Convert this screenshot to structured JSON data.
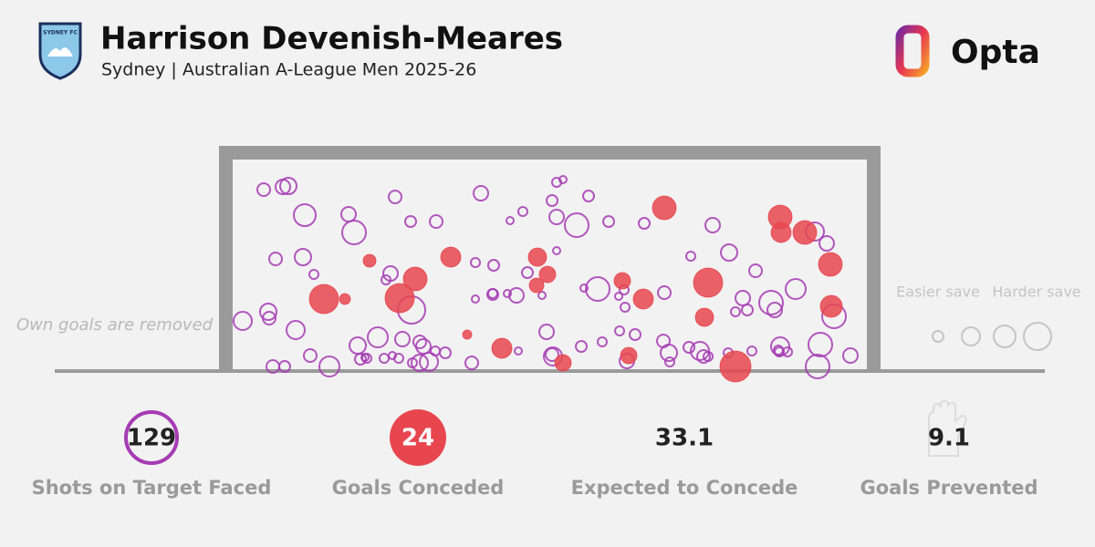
{
  "header": {
    "crest": "SYDNEY FC",
    "title": "Harrison Devenish-Meares",
    "subtitle": "Sydney | Australian A-League Men 2025-26",
    "brand": "Opta"
  },
  "chart_data": {
    "type": "scatter",
    "annotation": "Own goals are removed",
    "size_legend": {
      "easier": "Easier save",
      "harder": "Harder save"
    },
    "xlim": [
      255,
      950
    ],
    "ylim": [
      405,
      175
    ],
    "series": [
      {
        "color": "#a63bb4",
        "filled": false,
        "x": [
          289,
          310,
          316,
          334,
          433,
          527,
          605,
          610,
          617,
          645,
          382,
          388,
          450,
          478,
          573,
          559,
          610,
          632,
          667,
          706,
          781,
          799,
          893,
          906,
          302,
          332,
          344,
          428,
          423,
          521,
          541,
          578,
          610,
          757,
          828,
          872,
          655,
          684,
          728,
          814,
          845,
          849,
          819,
          806,
          521,
          540,
          556,
          566,
          594,
          640,
          678,
          266,
          294,
          295,
          324,
          451,
          414,
          392,
          441,
          460,
          464,
          488,
          517,
          599,
          606,
          637,
          660,
          679,
          696,
          727,
          733,
          755,
          767,
          771,
          798,
          855,
          854,
          899,
          914,
          932,
          896,
          340,
          361,
          299,
          312,
          395,
          402,
          421,
          437,
          452,
          460,
          470,
          605,
          687,
          734,
          776,
          824,
          853,
          863,
          430,
          685,
          540,
          568,
          477,
          400
        ],
        "values": [
          208,
          205,
          204,
          236,
          216,
          212,
          220,
          200,
          197,
          215,
          235,
          255,
          243,
          243,
          232,
          242,
          238,
          247,
          243,
          245,
          247,
          277,
          254,
          267,
          284,
          282,
          301,
          300,
          307,
          288,
          291,
          299,
          275,
          281,
          297,
          317,
          317,
          318,
          321,
          327,
          332,
          340,
          340,
          342,
          328,
          323,
          322,
          324,
          324,
          316,
          325,
          352,
          342,
          349,
          362,
          340,
          370,
          379,
          372,
          375,
          380,
          387,
          398,
          364,
          391,
          380,
          375,
          363,
          367,
          374,
          387,
          381,
          385,
          391,
          387,
          380,
          386,
          378,
          347,
          390,
          402,
          390,
          402,
          402,
          402,
          394,
          393,
          393,
          393,
          398,
          398,
          397,
          389,
          396,
          397,
          391,
          385,
          384,
          386,
          390,
          337,
          322,
          385,
          385,
          392
        ],
        "sizes": [
          7,
          8,
          9,
          12,
          7,
          8,
          6,
          5,
          4,
          6,
          8,
          13,
          6,
          7,
          5,
          4,
          8,
          13,
          6,
          6,
          8,
          9,
          10,
          8,
          7,
          9,
          5,
          8,
          5,
          5,
          6,
          6,
          4,
          5,
          7,
          11,
          13,
          5,
          7,
          8,
          13,
          8,
          6,
          5,
          4,
          6,
          4,
          8,
          4,
          4,
          4,
          10,
          9,
          7,
          10,
          15,
          11,
          9,
          8,
          7,
          8,
          6,
          7,
          8,
          10,
          6,
          5,
          5,
          6,
          7,
          9,
          6,
          10,
          7,
          5,
          10,
          5,
          13,
          13,
          8,
          13,
          7,
          11,
          7,
          6,
          6,
          5,
          5,
          5,
          5,
          9,
          10,
          7,
          8,
          5,
          5,
          5,
          5,
          5,
          4,
          5,
          5,
          4,
          5,
          4
        ]
      },
      {
        "color": "#e8464f",
        "filled": true,
        "x": [
          728,
          855,
          856,
          882,
          910,
          405,
          494,
          455,
          589,
          600,
          588,
          355,
          378,
          438,
          682,
          705,
          776,
          772,
          911,
          512,
          550,
          617,
          689,
          806
        ],
        "values": [
          228,
          238,
          255,
          255,
          290,
          286,
          282,
          306,
          282,
          301,
          313,
          328,
          328,
          327,
          308,
          328,
          310,
          348,
          336,
          367,
          382,
          398,
          390,
          402
        ],
        "sizes": [
          13,
          13,
          11,
          13,
          13,
          7,
          11,
          13,
          10,
          9,
          8,
          16,
          6,
          16,
          9,
          11,
          16,
          10,
          12,
          5,
          11,
          9,
          9,
          17
        ]
      }
    ]
  },
  "stats": [
    {
      "value": 129,
      "label": "Shots on Target Faced"
    },
    {
      "value": 24,
      "label": "Goals Conceded"
    },
    {
      "value": 33.1,
      "label": "Expected to Concede"
    },
    {
      "value": 9.1,
      "label": "Goals Prevented"
    }
  ]
}
